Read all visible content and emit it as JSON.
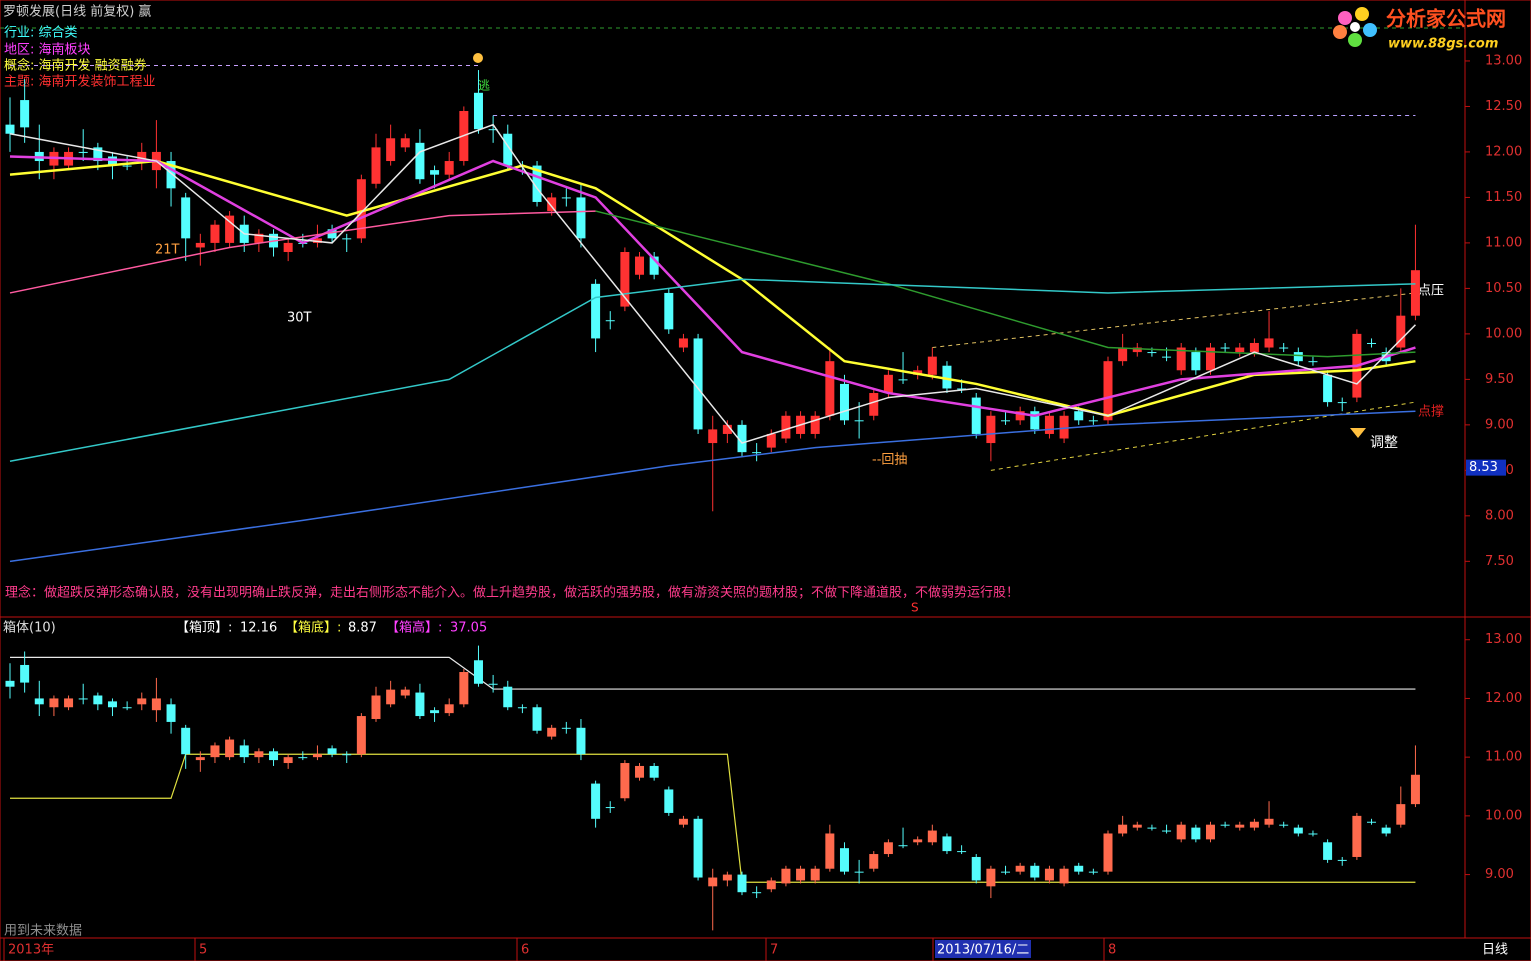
{
  "header": {
    "title": "罗顿发展(日线 前复权) 赢",
    "industry": "行业: 综合类",
    "region": "地区: 海南板块",
    "concept": "概念: 海南开发 融资融券",
    "theme": "主题: 海南开发装饰工程业",
    "logo": "分析家公式网",
    "logo_url": "www.88gs.com"
  },
  "chart_data": [
    {
      "type": "candlestick",
      "ylim": [
        6.91,
        13.67
      ],
      "yticks": [
        {
          "value": 13,
          "label": "13.00"
        },
        {
          "value": 12.5,
          "label": "12.50"
        },
        {
          "value": 12,
          "label": "12.00"
        },
        {
          "value": 11.5,
          "label": "11.50"
        },
        {
          "value": 11,
          "label": "11.00"
        },
        {
          "value": 10.5,
          "label": "10.50"
        },
        {
          "value": 10,
          "label": "10.00"
        },
        {
          "value": 9.5,
          "label": "9.50"
        },
        {
          "value": 9,
          "label": "9.00"
        },
        {
          "value": 8.5,
          "label": "8.50"
        },
        {
          "value": 8,
          "label": "8.00"
        },
        {
          "value": 7.5,
          "label": "7.50"
        }
      ],
      "up_color": "#ff3232",
      "down_color": "#54ffff",
      "open": [
        12.3,
        12.57,
        12.0,
        11.85,
        11.85,
        12.0,
        12.05,
        11.95,
        11.85,
        11.9,
        11.8,
        11.9,
        11.5,
        10.95,
        11.0,
        11.0,
        11.2,
        11.0,
        11.1,
        10.9,
        11.0,
        11.0,
        11.15,
        11.05,
        11.05,
        11.65,
        11.9,
        12.05,
        12.1,
        11.8,
        11.75,
        11.9,
        12.65,
        12.25,
        12.2,
        11.85,
        11.85,
        11.35,
        11.5,
        11.5,
        10.55,
        10.15,
        10.3,
        10.65,
        10.85,
        10.45,
        9.85,
        9.95,
        8.8,
        8.9,
        9.0,
        8.7,
        8.75,
        8.85,
        8.9,
        8.9,
        9.1,
        9.45,
        9.05,
        9.1,
        9.35,
        9.5,
        9.55,
        9.55,
        9.65,
        9.4,
        9.3,
        8.8,
        9.05,
        9.05,
        9.15,
        8.9,
        8.85,
        9.15,
        9.05,
        9.05,
        9.7,
        9.8,
        9.8,
        9.75,
        9.6,
        9.8,
        9.6,
        9.85,
        9.8,
        9.8,
        9.85,
        9.85,
        9.8,
        9.7,
        9.55,
        9.25,
        9.3,
        9.9,
        9.8,
        9.85,
        10.2
      ],
      "close": [
        12.2,
        12.27,
        11.9,
        12.0,
        12.0,
        12.0,
        11.9,
        11.85,
        11.85,
        12.0,
        12.0,
        11.6,
        11.05,
        11.0,
        11.2,
        11.3,
        11.0,
        11.1,
        10.95,
        11.0,
        11.0,
        11.05,
        11.05,
        11.05,
        11.7,
        12.05,
        12.15,
        12.15,
        11.7,
        11.75,
        11.9,
        12.45,
        12.25,
        12.25,
        11.85,
        11.85,
        11.45,
        11.5,
        11.5,
        11.05,
        9.95,
        10.15,
        10.9,
        10.85,
        10.65,
        10.05,
        9.95,
        8.95,
        8.95,
        9.0,
        8.7,
        8.7,
        8.9,
        9.1,
        9.1,
        9.1,
        9.7,
        9.05,
        9.05,
        9.35,
        9.55,
        9.5,
        9.6,
        9.75,
        9.4,
        9.4,
        8.9,
        9.1,
        9.05,
        9.15,
        8.95,
        9.1,
        9.1,
        9.05,
        9.05,
        9.7,
        9.85,
        9.85,
        9.8,
        9.75,
        9.85,
        9.6,
        9.85,
        9.85,
        9.85,
        9.9,
        9.95,
        9.85,
        9.7,
        9.7,
        9.25,
        9.25,
        10.0,
        9.9,
        9.7,
        10.2,
        10.7
      ],
      "high": [
        12.6,
        12.8,
        12.3,
        12.05,
        12.05,
        12.25,
        12.1,
        12.0,
        11.95,
        12.1,
        12.35,
        12.0,
        11.55,
        11.1,
        11.25,
        11.35,
        11.3,
        11.15,
        11.15,
        11.05,
        11.1,
        11.2,
        11.2,
        11.1,
        11.75,
        12.2,
        12.3,
        12.2,
        12.25,
        11.85,
        12.0,
        12.5,
        12.9,
        12.4,
        12.3,
        11.9,
        11.9,
        11.55,
        11.6,
        11.65,
        10.6,
        10.25,
        10.95,
        10.9,
        10.9,
        10.5,
        10.0,
        10.0,
        9.1,
        9.05,
        9.05,
        8.8,
        8.95,
        9.15,
        9.15,
        9.15,
        9.85,
        9.55,
        9.25,
        9.4,
        9.6,
        9.8,
        9.65,
        9.85,
        9.7,
        9.5,
        9.35,
        9.15,
        9.15,
        9.2,
        9.2,
        9.15,
        9.15,
        9.2,
        9.1,
        9.75,
        10.0,
        9.9,
        9.85,
        9.85,
        9.9,
        9.85,
        9.9,
        9.9,
        9.9,
        9.95,
        10.25,
        9.9,
        9.85,
        9.75,
        9.6,
        9.3,
        10.05,
        9.95,
        9.85,
        10.5,
        11.2
      ],
      "low": [
        12.0,
        12.1,
        11.7,
        11.7,
        11.8,
        11.9,
        11.8,
        11.7,
        11.8,
        11.8,
        11.6,
        11.4,
        10.8,
        10.75,
        10.9,
        10.95,
        10.9,
        10.9,
        10.85,
        10.8,
        10.95,
        10.95,
        11.0,
        10.9,
        11.0,
        11.6,
        11.85,
        12.0,
        11.65,
        11.6,
        11.7,
        11.85,
        12.2,
        12.1,
        11.8,
        11.75,
        11.4,
        11.3,
        11.4,
        10.95,
        9.8,
        10.05,
        10.25,
        10.6,
        10.6,
        10.0,
        9.8,
        8.9,
        8.05,
        8.8,
        8.65,
        8.6,
        8.7,
        8.8,
        8.85,
        8.85,
        9.05,
        9.0,
        8.85,
        9.05,
        9.3,
        9.45,
        9.5,
        9.5,
        9.35,
        9.35,
        8.85,
        8.6,
        9.0,
        9.0,
        8.9,
        8.85,
        8.8,
        9.0,
        9.0,
        9.0,
        9.65,
        9.75,
        9.75,
        9.7,
        9.55,
        9.55,
        9.55,
        9.8,
        9.75,
        9.75,
        9.8,
        9.8,
        9.65,
        9.65,
        9.2,
        9.15,
        9.25,
        9.85,
        9.65,
        9.8,
        10.15
      ],
      "lines": [
        {
          "color": "#ffff33",
          "x": [
            0,
            10,
            23,
            35,
            40,
            50,
            57,
            66,
            75,
            85,
            92,
            96
          ],
          "values": [
            11.75,
            11.9,
            11.3,
            11.85,
            11.6,
            10.6,
            9.7,
            9.45,
            9.1,
            9.55,
            9.6,
            9.7
          ]
        },
        {
          "color": "#e040e0",
          "x": [
            0,
            10,
            20,
            33,
            40,
            50,
            60,
            70,
            80,
            92,
            96
          ],
          "values": [
            11.95,
            11.9,
            11.0,
            11.9,
            11.5,
            9.8,
            9.35,
            9.1,
            9.5,
            9.65,
            9.85
          ]
        },
        {
          "color": "#ff5aa0",
          "x": [
            0,
            15,
            30,
            40
          ],
          "values": [
            10.45,
            10.95,
            11.3,
            11.35
          ]
        },
        {
          "color": "#2e9b2e",
          "x": [
            40,
            50,
            60,
            75,
            90,
            96
          ],
          "values": [
            11.35,
            10.95,
            10.55,
            9.85,
            9.75,
            9.8
          ]
        },
        {
          "color": "#33c8c8",
          "x": [
            0,
            20,
            30,
            40,
            50,
            75,
            96
          ],
          "values": [
            8.6,
            9.2,
            9.5,
            10.4,
            10.6,
            10.45,
            10.55
          ]
        },
        {
          "color": "#3a6fe0",
          "x": [
            0,
            20,
            45,
            55,
            75,
            96
          ],
          "values": [
            7.5,
            7.95,
            8.55,
            8.75,
            9.0,
            9.15
          ]
        },
        {
          "color": "#e8e8e8",
          "x": [
            0,
            10,
            16,
            22,
            28,
            33,
            36,
            42,
            50,
            54,
            60,
            66,
            75,
            85,
            92,
            96
          ],
          "values": [
            12.2,
            11.9,
            11.1,
            11.0,
            12.0,
            12.3,
            11.6,
            10.4,
            8.8,
            9.0,
            9.3,
            9.4,
            9.1,
            9.8,
            9.45,
            10.1
          ]
        }
      ],
      "dashed": [
        {
          "color": "#b8a0ff",
          "x": [
            33,
            96
          ],
          "values": [
            12.4,
            12.4
          ]
        },
        {
          "color": "#c8a0ff",
          "x": [
            0,
            32
          ],
          "values": [
            12.95,
            12.95
          ]
        },
        {
          "color": "#e0c060",
          "x": [
            63,
            96
          ],
          "values": [
            9.85,
            10.45
          ]
        },
        {
          "color": "#e0d040",
          "x": [
            67,
            96
          ],
          "values": [
            8.5,
            9.25
          ]
        }
      ],
      "price_tag": 8.53,
      "annotations": {
        "t21": "21T",
        "t30": "30T",
        "escape": "逃",
        "pullback": "--回抽",
        "resist": "点压",
        "support": "点撑",
        "adjust": "调整",
        "sell": "S"
      },
      "note": "理念：做超跌反弹形态确认股，没有出现明确止跌反弹，走出右侧形态不能介入。做上升趋势股，做活跃的强势股，做有游资关照的题材股；不做下降通道股，不做弱势运行股！"
    },
    {
      "type": "box",
      "title": "箱体(10)",
      "ylim": [
        7.92,
        13.37
      ],
      "yticks": [
        {
          "value": 13,
          "label": "13.00"
        },
        {
          "value": 12,
          "label": "12.00"
        },
        {
          "value": 11,
          "label": "11.00"
        },
        {
          "value": 10,
          "label": "10.00"
        },
        {
          "value": 9,
          "label": "9.00"
        }
      ],
      "up_color": "#ff6a4d",
      "down_color": "#54fcfc",
      "box_top_label": "【箱顶】:",
      "box_top": 12.16,
      "box_bottom_label": "【箱底】:",
      "box_bottom": 8.87,
      "box_height_label": "【箱高】:",
      "box_height": 37.05,
      "top_line": {
        "color": "#e8e8e8",
        "x": [
          0,
          30,
          33,
          96
        ],
        "values": [
          12.7,
          12.7,
          12.16,
          12.16
        ]
      },
      "bottom_line": {
        "color": "#e0e040",
        "x": [
          0,
          11,
          12,
          49,
          50,
          96
        ],
        "values": [
          10.3,
          10.3,
          11.05,
          11.05,
          8.87,
          8.87
        ]
      },
      "footnote": "用到未来数据"
    }
  ],
  "x_labels": [
    "2013年",
    "5",
    "6",
    "7",
    "2013/07/16/二",
    "8"
  ],
  "period": "日线"
}
